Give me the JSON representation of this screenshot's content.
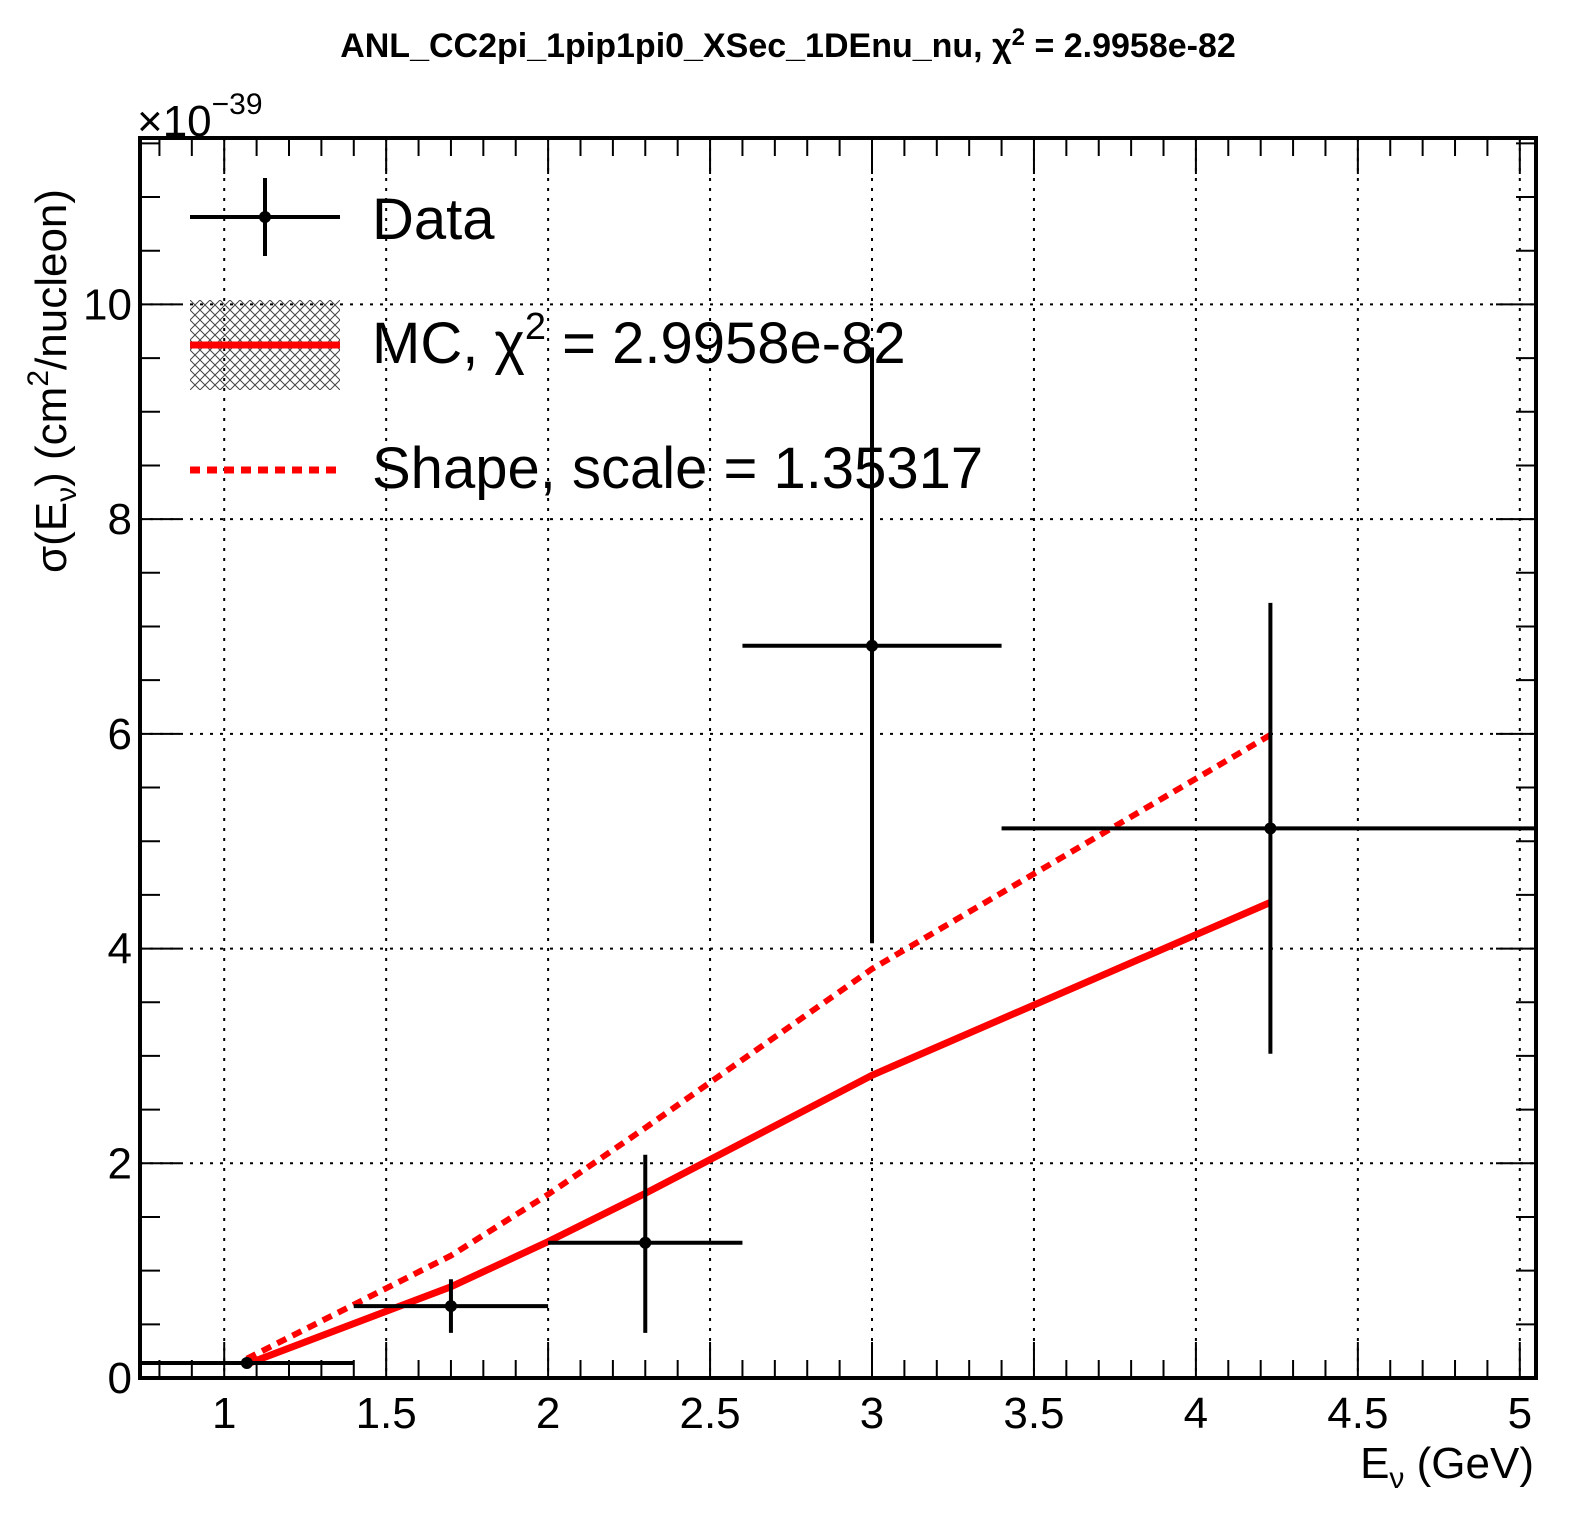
{
  "chart_data": {
    "type": "line",
    "title": "ANL_CC2pi_1pip1pi0_XSec_1DEnu_nu, χ² = 2.9958e-82",
    "title_main": "ANL_CC2pi_1pip1pi0_XSec_1DEnu_nu, χ",
    "title_sup": "2",
    "title_tail": " = 2.9958e-82",
    "xlabel_main": "E",
    "xlabel_sub": "ν",
    "xlabel_tail": " (GeV)",
    "ylabel_pre": "σ(E",
    "ylabel_sub": "ν",
    "ylabel_mid": ") (cm",
    "ylabel_sup": "2",
    "ylabel_post": "/nucleon)",
    "y_multiplier_base": "×10",
    "y_multiplier_exp": "−39",
    "xlim": [
      0.74,
      5.05
    ],
    "ylim": [
      0,
      11.55
    ],
    "x_ticks": [
      1,
      1.5,
      2,
      2.5,
      3,
      3.5,
      4,
      4.5,
      5
    ],
    "x_tick_labels": [
      "1",
      "1.5",
      "2",
      "2.5",
      "3",
      "3.5",
      "4",
      "4.5",
      "5"
    ],
    "y_ticks": [
      0,
      2,
      4,
      6,
      8,
      10
    ],
    "y_tick_labels": [
      "0",
      "2",
      "4",
      "6",
      "8",
      "10"
    ],
    "grid": true,
    "legend_position": "top-left",
    "series": [
      {
        "name": "Data",
        "kind": "errorbar",
        "color": "#000000",
        "points": [
          {
            "x": 1.07,
            "xlow": 0.74,
            "xhigh": 1.4,
            "y": 0.14,
            "ylow": 0.1,
            "yhigh": 0.18
          },
          {
            "x": 1.7,
            "xlow": 1.4,
            "xhigh": 2.0,
            "y": 0.67,
            "ylow": 0.42,
            "yhigh": 0.92
          },
          {
            "x": 2.3,
            "xlow": 2.0,
            "xhigh": 2.6,
            "y": 1.26,
            "ylow": 0.42,
            "yhigh": 2.08
          },
          {
            "x": 3.0,
            "xlow": 2.6,
            "xhigh": 3.4,
            "y": 6.82,
            "ylow": 4.05,
            "yhigh": 9.6
          },
          {
            "x": 4.23,
            "xlow": 3.4,
            "xhigh": 5.05,
            "y": 5.12,
            "ylow": 3.02,
            "yhigh": 7.22
          }
        ]
      },
      {
        "name_main": "MC, χ",
        "name_sup": "2",
        "name_tail": " = 2.9958e-82",
        "kind": "line",
        "color": "#ff0000",
        "x": [
          1.07,
          1.7,
          2.0,
          2.3,
          3.0,
          4.23
        ],
        "y": [
          0.13,
          0.85,
          1.27,
          1.72,
          2.82,
          4.43
        ]
      },
      {
        "name": "Shape, scale = 1.35317",
        "kind": "dashed-line",
        "color": "#ff0000",
        "x": [
          1.07,
          1.7,
          2.0,
          2.3,
          3.0,
          4.23
        ],
        "y": [
          0.18,
          1.14,
          1.71,
          2.33,
          3.81,
          5.99
        ]
      }
    ]
  }
}
